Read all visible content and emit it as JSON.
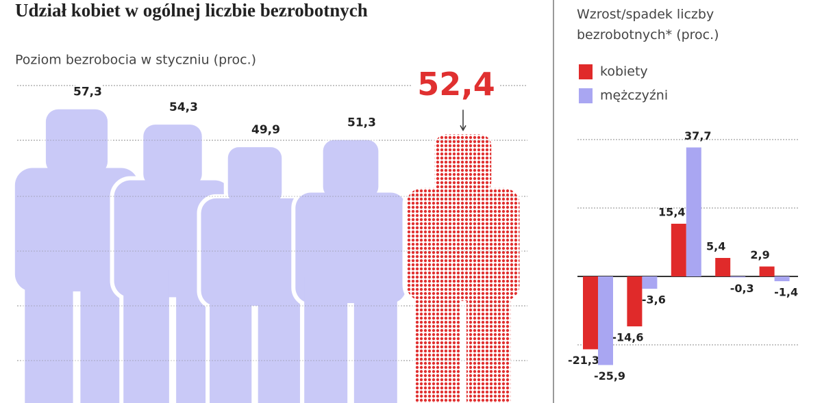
{
  "chart_data": [
    {
      "type": "pictogram",
      "title": "Udział kobiet w ogólnej liczbie bezrobotnych",
      "subtitle": "Poziom bezrobocia w styczniu (proc.)",
      "values": [
        57.3,
        54.3,
        49.9,
        51.3,
        52.4
      ],
      "value_labels": [
        "57,3",
        "54,3",
        "49,9",
        "51,3",
        "52,4"
      ],
      "color": "#c9c9f7",
      "highlight_color": "#e03030",
      "highlight_index": 4,
      "ylim": [
        0,
        65
      ]
    },
    {
      "type": "bar",
      "title": "Wzrost/spadek liczby bezrobotnych* (proc.)",
      "categories": [
        null,
        null,
        null,
        null,
        null
      ],
      "series": [
        {
          "name": "kobiety",
          "color": "#e02a2a",
          "values": [
            -21.3,
            -14.6,
            15.4,
            5.4,
            2.9
          ],
          "value_labels": [
            "-21,3",
            "-14,6",
            "15,4",
            "5,4",
            "2,9"
          ]
        },
        {
          "name": "mężczyźni",
          "color": "#a9a6f2",
          "values": [
            -25.9,
            -3.6,
            37.7,
            -0.3,
            -1.4
          ],
          "value_labels": [
            "-25,9",
            "-3,6",
            "37,7",
            "-0,3",
            "-1,4"
          ]
        }
      ],
      "ylim": [
        -37,
        43
      ],
      "yticks": [
        -20,
        0,
        20,
        40
      ],
      "grid": true
    }
  ]
}
